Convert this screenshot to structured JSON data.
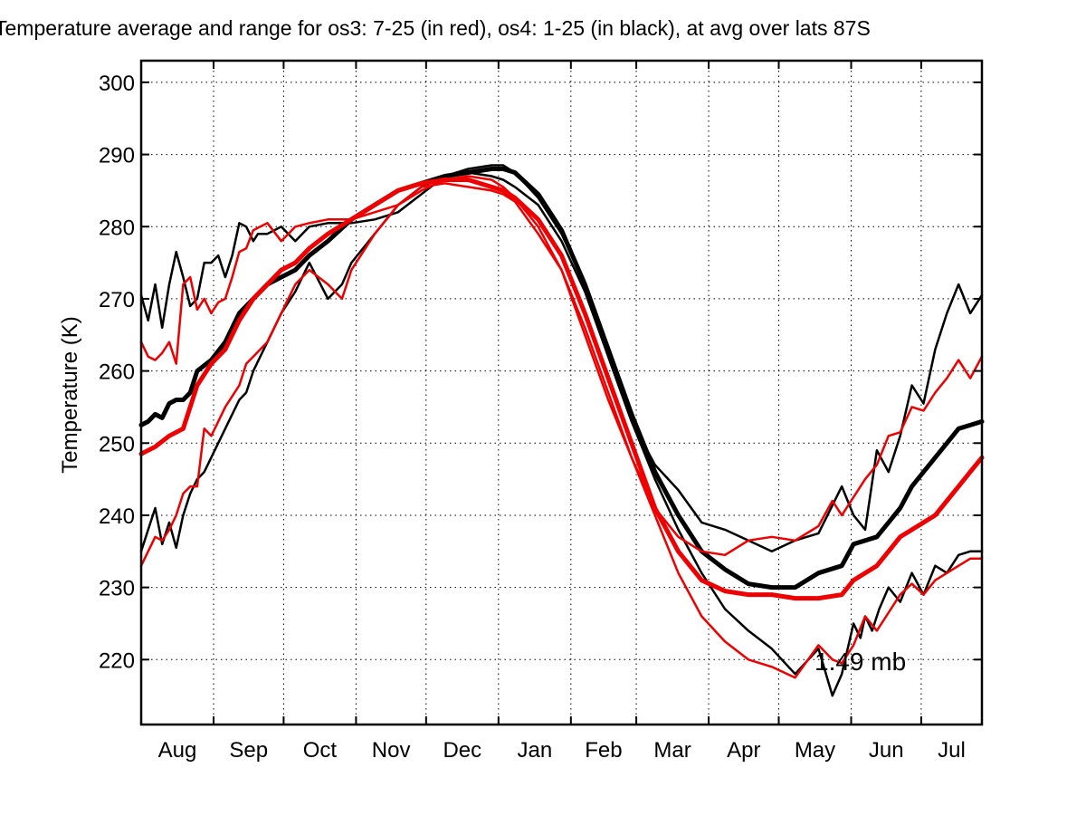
{
  "chart_data": {
    "type": "line",
    "title": "Temperature average and range for os3: 7-25 (in red), os4: 1-25 (in black),  at avg over lats 87S",
    "ylabel": "Temperature (K)",
    "xlabel": "",
    "annotation": "1.49 mb",
    "ylim": [
      211,
      303
    ],
    "yticks": [
      220,
      230,
      240,
      250,
      260,
      270,
      280,
      290,
      300
    ],
    "x_range_days": [
      0,
      360
    ],
    "month_ticks": [
      {
        "label": "Aug",
        "day": 0
      },
      {
        "label": "Sep",
        "day": 31
      },
      {
        "label": "Oct",
        "day": 61
      },
      {
        "label": "Nov",
        "day": 92
      },
      {
        "label": "Dec",
        "day": 122
      },
      {
        "label": "Jan",
        "day": 153
      },
      {
        "label": "Feb",
        "day": 184
      },
      {
        "label": "Mar",
        "day": 212
      },
      {
        "label": "Apr",
        "day": 243
      },
      {
        "label": "May",
        "day": 273
      },
      {
        "label": "Jun",
        "day": 304
      },
      {
        "label": "Jul",
        "day": 334
      }
    ],
    "grid": true,
    "colors": {
      "os3": "#ee0000",
      "os4": "#000000"
    },
    "series": [
      {
        "group": "os4",
        "kind": "max",
        "color": "#000000",
        "width": 2.5,
        "x": [
          0,
          3,
          6,
          9,
          12,
          15,
          18,
          21,
          24,
          27,
          30,
          33,
          36,
          39,
          42,
          45,
          48,
          50,
          54,
          60,
          66,
          72,
          80,
          90,
          100,
          110,
          120,
          130,
          140,
          150,
          155,
          160,
          170,
          180,
          190,
          200,
          210,
          220,
          230,
          240,
          250,
          260,
          270,
          280,
          290,
          300,
          305,
          310,
          315,
          320,
          325,
          330,
          335,
          340,
          345,
          350,
          355,
          360
        ],
        "y": [
          270.5,
          267,
          272,
          266,
          272,
          276.5,
          273,
          269,
          270,
          275,
          275,
          276,
          273,
          276,
          280.5,
          280,
          278,
          279,
          279,
          280,
          278,
          280,
          280.5,
          280.5,
          281,
          282,
          284.5,
          287,
          288,
          288.5,
          288.5,
          287.5,
          284,
          279,
          272,
          262,
          253,
          247,
          243.5,
          239,
          238,
          236.5,
          235,
          236.5,
          237.5,
          244,
          240,
          238,
          249,
          246,
          251,
          258,
          255.5,
          263,
          268,
          272,
          268,
          270.5
        ]
      },
      {
        "group": "os4",
        "kind": "mean",
        "color": "#000000",
        "width": 5,
        "x": [
          0,
          3,
          6,
          9,
          12,
          15,
          18,
          21,
          24,
          30,
          36,
          42,
          48,
          54,
          60,
          66,
          72,
          80,
          90,
          100,
          110,
          120,
          130,
          140,
          150,
          155,
          160,
          170,
          180,
          190,
          200,
          210,
          220,
          230,
          240,
          250,
          260,
          270,
          280,
          290,
          300,
          305,
          310,
          315,
          320,
          325,
          330,
          335,
          340,
          345,
          350,
          355,
          360
        ],
        "y": [
          252.5,
          253,
          254,
          253.5,
          255.5,
          256,
          256,
          257,
          260,
          261.5,
          264,
          268,
          270,
          272,
          273,
          274,
          276,
          278,
          281,
          283,
          285,
          286,
          287,
          287.5,
          288,
          288,
          287.5,
          284.5,
          279.5,
          272,
          263,
          254,
          246,
          240,
          235,
          232.5,
          230.5,
          230,
          230,
          232,
          233,
          236,
          236.5,
          237,
          239,
          241,
          244,
          246,
          248,
          250,
          252,
          252.5,
          253
        ]
      },
      {
        "group": "os4",
        "kind": "min",
        "color": "#000000",
        "width": 2.5,
        "x": [
          0,
          3,
          6,
          9,
          12,
          15,
          18,
          21,
          24,
          27,
          30,
          36,
          42,
          45,
          48,
          54,
          60,
          66,
          72,
          80,
          86,
          90,
          100,
          110,
          120,
          130,
          140,
          150,
          155,
          160,
          170,
          180,
          190,
          200,
          210,
          220,
          230,
          240,
          250,
          260,
          270,
          280,
          290,
          296,
          300,
          305,
          308,
          310,
          313,
          316,
          320,
          325,
          330,
          335,
          340,
          345,
          350,
          355,
          360
        ],
        "y": [
          235,
          238,
          241,
          236,
          239,
          235.5,
          240,
          243,
          245,
          246,
          248,
          252,
          256,
          257,
          260,
          264,
          268,
          271,
          275,
          270,
          272,
          275,
          279,
          283,
          285.5,
          287,
          287.5,
          287,
          286.5,
          285.5,
          283,
          278,
          271,
          262,
          253,
          245,
          238,
          232,
          227,
          224,
          221.5,
          218,
          221.5,
          215,
          218,
          225,
          223,
          226,
          224,
          227,
          230,
          228,
          232,
          229,
          233,
          232,
          234.5,
          235,
          235
        ]
      },
      {
        "group": "os3",
        "kind": "max",
        "color": "#ee0000",
        "width": 2.5,
        "x": [
          0,
          3,
          6,
          9,
          12,
          15,
          18,
          21,
          24,
          27,
          30,
          33,
          36,
          39,
          42,
          45,
          48,
          51,
          54,
          60,
          66,
          72,
          80,
          90,
          100,
          110,
          120,
          130,
          140,
          150,
          155,
          160,
          170,
          180,
          190,
          200,
          210,
          220,
          230,
          240,
          250,
          260,
          270,
          280,
          290,
          296,
          300,
          305,
          310,
          315,
          320,
          325,
          330,
          335,
          340,
          345,
          350,
          355,
          360
        ],
        "y": [
          264,
          262,
          261.5,
          262.5,
          264,
          261,
          272,
          273,
          268.5,
          270,
          268,
          269.5,
          270,
          273,
          276.5,
          277,
          279.5,
          280,
          280.5,
          278,
          280,
          280.5,
          281,
          281,
          282,
          283,
          285,
          286.5,
          287,
          286.5,
          285.5,
          284,
          280,
          274,
          265,
          256,
          248,
          241,
          237,
          235,
          234.5,
          236.5,
          237,
          236.5,
          238.5,
          242,
          240,
          242.5,
          245,
          247,
          251,
          251.5,
          255,
          254.5,
          257,
          259,
          261.5,
          259,
          262
        ]
      },
      {
        "group": "os3",
        "kind": "mean",
        "color": "#ee0000",
        "width": 5,
        "x": [
          0,
          6,
          12,
          18,
          24,
          30,
          36,
          42,
          48,
          54,
          60,
          66,
          72,
          80,
          90,
          100,
          110,
          120,
          130,
          140,
          150,
          155,
          160,
          170,
          180,
          190,
          200,
          210,
          220,
          230,
          240,
          250,
          260,
          270,
          280,
          290,
          300,
          305,
          310,
          315,
          320,
          325,
          330,
          335,
          340,
          345,
          350,
          355,
          360
        ],
        "y": [
          248.5,
          249.5,
          251,
          252,
          258,
          261,
          263,
          267,
          270,
          272,
          274,
          275,
          277,
          279,
          281,
          283,
          285,
          286,
          286.5,
          286.5,
          285.5,
          285,
          284,
          281,
          276,
          268,
          259,
          250,
          241,
          235,
          231,
          229.5,
          229,
          229,
          228.5,
          228.5,
          229,
          231,
          232,
          233,
          235,
          237,
          238,
          239,
          240,
          242,
          244,
          246,
          248
        ]
      },
      {
        "group": "os3",
        "kind": "min",
        "color": "#ee0000",
        "width": 2.5,
        "x": [
          0,
          3,
          6,
          9,
          12,
          15,
          18,
          21,
          24,
          27,
          30,
          33,
          36,
          42,
          45,
          48,
          54,
          60,
          66,
          72,
          80,
          86,
          90,
          100,
          110,
          120,
          130,
          140,
          150,
          155,
          160,
          170,
          180,
          190,
          200,
          210,
          220,
          230,
          240,
          250,
          260,
          270,
          280,
          290,
          296,
          300,
          305,
          310,
          315,
          320,
          325,
          330,
          335,
          340,
          345,
          350,
          355,
          360
        ],
        "y": [
          233,
          235,
          237,
          236.5,
          238,
          240,
          243,
          244,
          244,
          252,
          251,
          253,
          255,
          258,
          261,
          262,
          264,
          268,
          272,
          274,
          272,
          270,
          274,
          279,
          283,
          285.5,
          286,
          285.5,
          285,
          284.5,
          283.5,
          279,
          274,
          266,
          257,
          248,
          240,
          232,
          226,
          222.5,
          220,
          219,
          217.5,
          222,
          220,
          219.5,
          222,
          226,
          224,
          226.5,
          229,
          230.5,
          229,
          231,
          232,
          233,
          234,
          234
        ]
      }
    ]
  }
}
